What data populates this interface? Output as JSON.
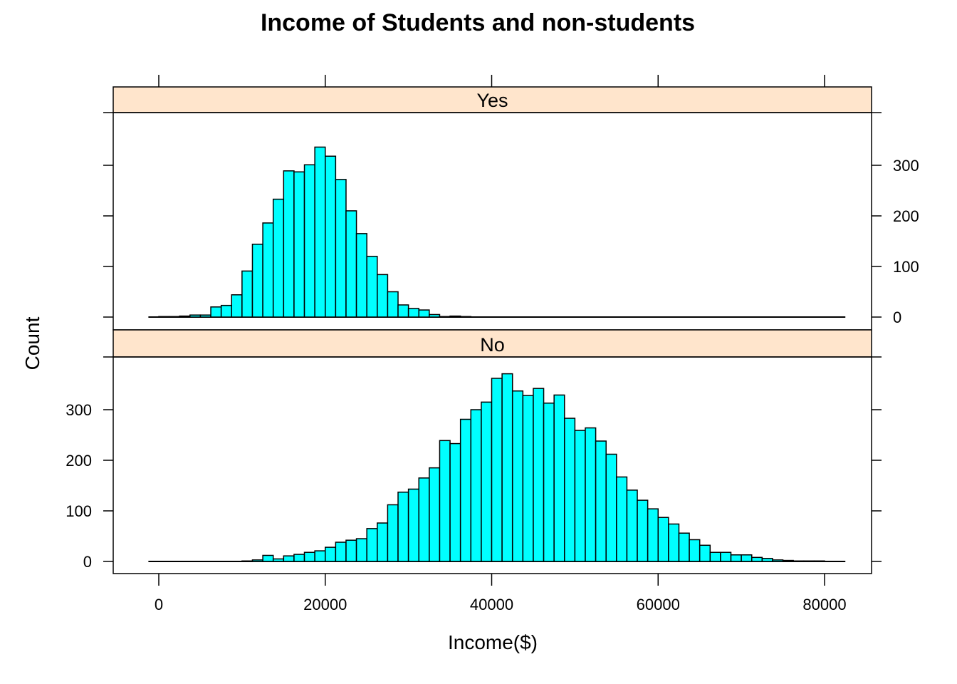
{
  "chart_data": {
    "type": "bar",
    "title": "Income of Students and non-students",
    "xlabel": "Income($)",
    "ylabel": "Count",
    "xlim": [
      -5000,
      85000
    ],
    "ylim": [
      -20,
      390
    ],
    "x_ticks": [
      0,
      20000,
      40000,
      60000,
      80000
    ],
    "x_tick_labels": [
      "0",
      "20000",
      "40000",
      "60000",
      "80000"
    ],
    "y_ticks": [
      0,
      100,
      200,
      300
    ],
    "y_tick_labels": [
      "0",
      "100",
      "200",
      "300"
    ],
    "bin_width": 1250,
    "bin_start": -1250,
    "bar_color": "#00FFFF",
    "strip_color": "#FFE5CC",
    "layout": "two stacked panels sharing x axis",
    "panels": [
      {
        "name": "Yes",
        "values": [
          0,
          1,
          1,
          2,
          4,
          4,
          20,
          23,
          44,
          91,
          144,
          186,
          233,
          289,
          287,
          301,
          336,
          318,
          272,
          210,
          165,
          120,
          84,
          50,
          24,
          17,
          14,
          5,
          1,
          2,
          1,
          0,
          0,
          0,
          0,
          0,
          0,
          0,
          0,
          0,
          0,
          0,
          0,
          0,
          0,
          0,
          0,
          0,
          0,
          0,
          0,
          0,
          0,
          0,
          0,
          0,
          0,
          0,
          0,
          0,
          0,
          0,
          0,
          0,
          0,
          0,
          0
        ]
      },
      {
        "name": "No",
        "values": [
          0,
          0,
          0,
          0,
          0,
          0,
          0,
          0,
          0,
          1,
          3,
          12,
          5,
          11,
          14,
          18,
          21,
          28,
          38,
          42,
          45,
          65,
          76,
          112,
          137,
          143,
          165,
          185,
          239,
          233,
          281,
          300,
          315,
          362,
          371,
          337,
          328,
          342,
          313,
          329,
          283,
          259,
          264,
          238,
          212,
          167,
          141,
          121,
          104,
          87,
          74,
          56,
          43,
          32,
          18,
          18,
          13,
          13,
          8,
          6,
          3,
          2,
          1,
          1,
          1,
          0,
          0
        ]
      }
    ]
  }
}
